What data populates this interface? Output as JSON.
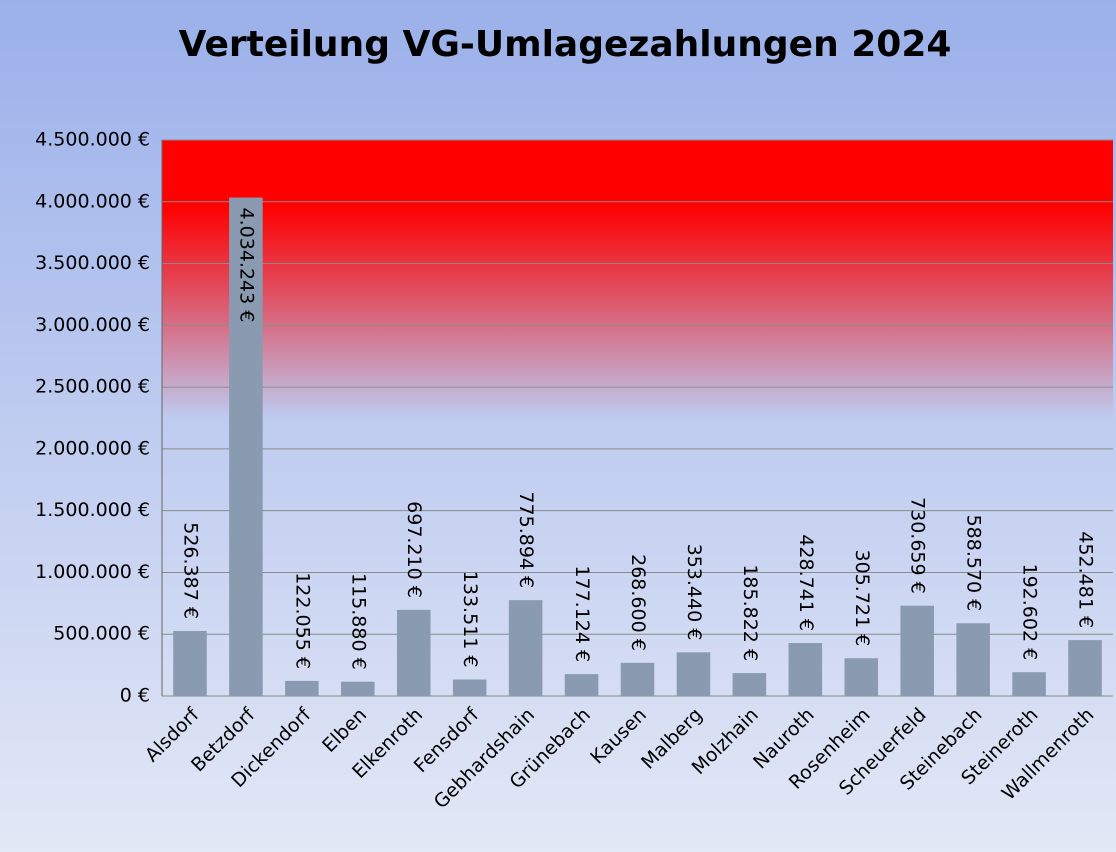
{
  "chart_data": {
    "type": "bar",
    "title": "Verteilung VG-Umlagezahlungen 2024",
    "categories": [
      "Alsdorf",
      "Betzdorf",
      "Dickendorf",
      "Elben",
      "Elkenroth",
      "Fensdorf",
      "Gebhardshain",
      "Grünebach",
      "Kausen",
      "Malberg",
      "Molzhain",
      "Nauroth",
      "Rosenheim",
      "Scheuerfeld",
      "Steinebach",
      "Steineroth",
      "Wallmenroth"
    ],
    "values": [
      526387,
      4034243,
      122055,
      115880,
      697210,
      133511,
      775894,
      177124,
      268600,
      353440,
      185822,
      428741,
      305721,
      730659,
      588570,
      192602,
      452481
    ],
    "value_labels": [
      "526.387 €",
      "4.034.243 €",
      "122.055 €",
      "115.880 €",
      "697.210 €",
      "133.511 €",
      "775.894 €",
      "177.124 €",
      "268.600 €",
      "353.440 €",
      "185.822 €",
      "428.741 €",
      "305.721 €",
      "730.659 €",
      "588.570 €",
      "192.602 €",
      "452.481 €"
    ],
    "color": "#8a9bb1",
    "ylim": [
      0,
      4500000
    ],
    "yticks": [
      {
        "value": 0,
        "label": "0 €"
      },
      {
        "value": 500000,
        "label": "500.000 €"
      },
      {
        "value": 1000000,
        "label": "1.000.000 €"
      },
      {
        "value": 1500000,
        "label": "1.500.000 €"
      },
      {
        "value": 2000000,
        "label": "2.000.000 €"
      },
      {
        "value": 2500000,
        "label": "2.500.000 €"
      },
      {
        "value": 3000000,
        "label": "3.000.000 €"
      },
      {
        "value": 3500000,
        "label": "3.500.000 €"
      },
      {
        "value": 4000000,
        "label": "4.000.000 €"
      },
      {
        "value": 4500000,
        "label": "4.500.000 €"
      }
    ],
    "grid": true
  }
}
